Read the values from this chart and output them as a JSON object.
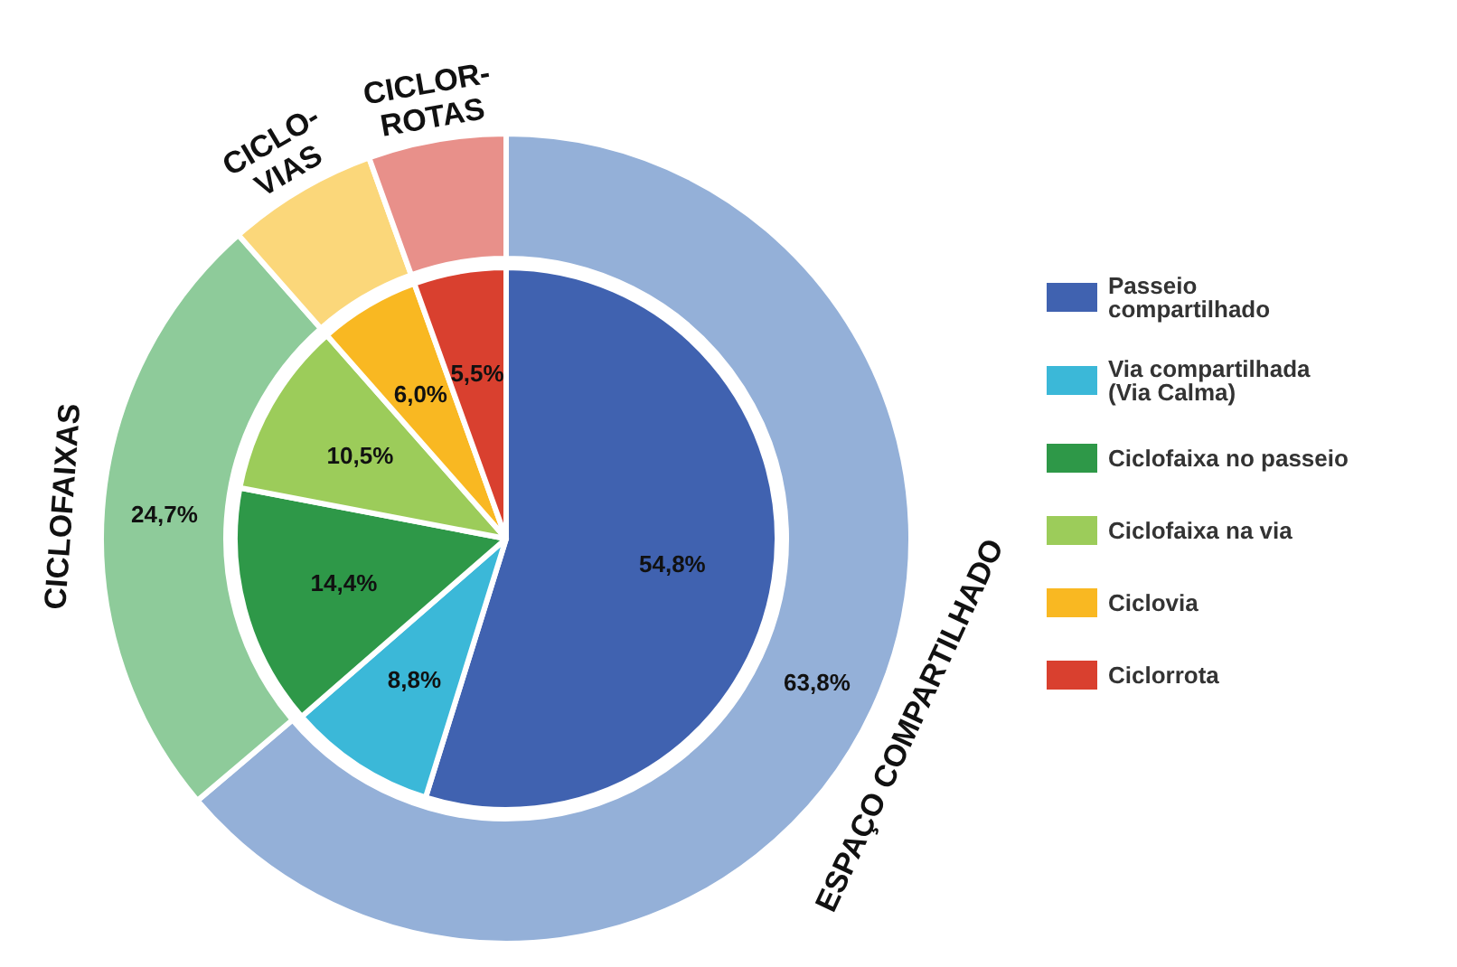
{
  "chart_data": [
    {
      "type": "pie",
      "categories": [
        "Passeio compartilhado",
        "Via compartilhada (Via Calma)",
        "Ciclofaixa no passeio",
        "Ciclofaixa na via",
        "Ciclovia",
        "Ciclorrota"
      ],
      "values": [
        54.8,
        8.8,
        14.4,
        10.5,
        6.0,
        5.5
      ],
      "colors": [
        "#4062b0",
        "#3bb8d8",
        "#2e9848",
        "#9ccc5a",
        "#f9b822",
        "#d9402f"
      ],
      "value_labels": [
        "54,8%",
        "8,8%",
        "14,4%",
        "10,5%",
        "6,0%",
        "5,5%"
      ],
      "legend": "right"
    },
    {
      "type": "donut",
      "categories": [
        "ESPAÇO COMPARTILHADO",
        "CICLOFAIXAS",
        "CICLO-\nVIAS",
        "CICLOR-\nROTAS"
      ],
      "values": [
        63.8,
        24.7,
        6.0,
        5.5
      ],
      "colors": [
        "#94b0d8",
        "#8ecb9a",
        "#fbd77a",
        "#e8908a"
      ],
      "value_labels": [
        "63,8%",
        "24,7%",
        null,
        null
      ]
    }
  ]
}
